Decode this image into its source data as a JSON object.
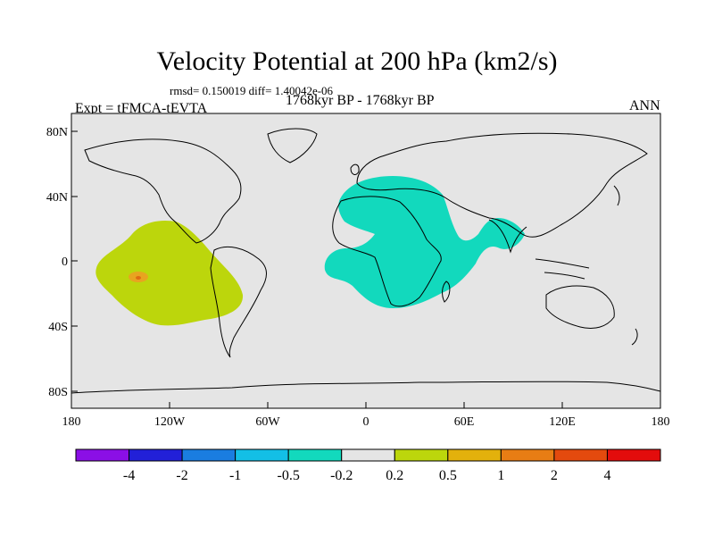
{
  "figure": {
    "title": "Velocity Potential at 200 hPa (km2/s)",
    "stats": "rmsd= 0.150019 diff= 1.40042e-06",
    "experiment": "Expt = tFMCA-tEVTA",
    "period": "1768kyr BP - 1768kyr BP",
    "season": "ANN"
  },
  "colors": {
    "background_land_ocean": "#e5e5e5",
    "positive_0_2_to_0_5": "#bcd60c",
    "negative_m0_5_to_m0_2": "#12d9bd",
    "positive_1_to_2": "#e8a420",
    "positive_2_to_4": "#e06a12"
  },
  "map": {
    "projection": "Cylindrical Equidistant",
    "lon_range": [
      -180,
      180
    ],
    "lat_range": [
      -90,
      90
    ],
    "lon_ticks": [
      "180",
      "120W",
      "60W",
      "0",
      "60E",
      "120E",
      "180"
    ],
    "lat_ticks": [
      "80N",
      "40N",
      "0",
      "40S",
      "80S"
    ]
  },
  "colorbar": {
    "colors": [
      "#8b0fe6",
      "#2220d8",
      "#1a7de0",
      "#13bfe6",
      "#12d9bd",
      "#e5e5e5",
      "#bcd60c",
      "#e3b10c",
      "#e87d14",
      "#e44a0e",
      "#e30c0c"
    ],
    "labels": [
      "-4",
      "-2",
      "-1",
      "-0.5",
      "-0.2",
      "0.2",
      "0.5",
      "1",
      "2",
      "4"
    ]
  },
  "anomalies": [
    {
      "sign": "positive",
      "level": "0.2 to 0.5",
      "region": "Central-east tropical Pacific",
      "center_lon": -125,
      "center_lat": -8
    },
    {
      "sign": "positive",
      "level": "1 to 2",
      "region": "Small core in central Pacific",
      "center_lon": -143,
      "center_lat": -7
    },
    {
      "sign": "negative",
      "level": "-0.5 to -0.2",
      "region": "Africa / Mediterranean / Middle East / Indian Ocean",
      "center_lon": 20,
      "center_lat": 10
    }
  ]
}
